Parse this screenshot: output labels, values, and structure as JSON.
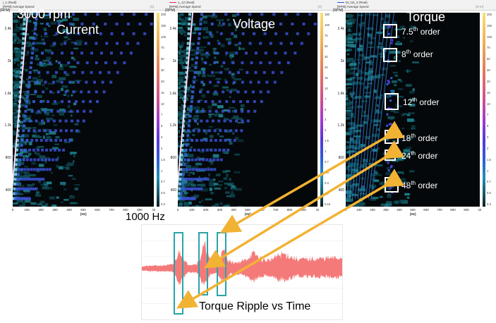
{
  "chart_data": [
    {
      "type": "heatmap",
      "title": "Current",
      "subtitle": "3000 rpm",
      "channel": "i_1 (Real)",
      "xaxis_header": "[RPM] Average Speed",
      "ylabel": "[RPM]",
      "yticks": [
        "2.4k",
        "2k",
        "1.6k",
        "1.2k",
        "800",
        "400"
      ],
      "xlabel": "[Hz]",
      "xticks": [
        "0",
        "100",
        "200",
        "300",
        "400",
        "500",
        "600",
        "700",
        "800",
        "900",
        "1k"
      ],
      "xlim": [
        0,
        1000
      ],
      "ylim": [
        200,
        2600
      ],
      "colorbar_unit": "[A]",
      "colorbar_ticks": [
        "200",
        "150",
        "100",
        "70",
        "50",
        "30",
        "20",
        "15",
        "10",
        "7",
        "5",
        "3",
        "2",
        "1.5",
        "1",
        "0.7",
        "0.5",
        "0.3"
      ],
      "order_lines": [
        2,
        4,
        6,
        8,
        10,
        12,
        14,
        16,
        18,
        20,
        22,
        24
      ]
    },
    {
      "type": "heatmap",
      "title": "Voltage",
      "channel": "u_12 (Real)",
      "xaxis_header": "[RPM] Average Speed",
      "ylabel": "[RPM]",
      "yticks": [
        "2.4k",
        "2k",
        "1.6k",
        "1.2k",
        "800",
        "400"
      ],
      "xlabel": "[Hz]",
      "xticks": [
        "0",
        "100",
        "200",
        "300",
        "400",
        "500",
        "600",
        "700",
        "800",
        "900",
        "1k"
      ],
      "xlim": [
        0,
        1000
      ],
      "ylim": [
        200,
        2600
      ],
      "colorbar_unit": "[V]",
      "colorbar_ticks": [
        "150",
        "100",
        "70",
        "50",
        "30",
        "20",
        "15",
        "10",
        "7",
        "5",
        "3",
        "2",
        "1.5",
        "1",
        "0.7",
        "0.5",
        "0.3",
        "0.2",
        "0.15"
      ],
      "order_lines": [
        2,
        4,
        6,
        8,
        10,
        12,
        14,
        16,
        18,
        20,
        22,
        24
      ]
    },
    {
      "type": "heatmap",
      "title": "Torque",
      "channel": "M_mit_3 (Real)",
      "xaxis_header": "[RPM] Average Speed",
      "ylabel": "[RPM]",
      "yticks": [
        "2.4k",
        "2k",
        "1.6k",
        "1.2k",
        "800",
        "400"
      ],
      "xlabel": "[Hz]",
      "xticks": [
        "0",
        "100",
        "200",
        "300",
        "400",
        "500",
        "600",
        "700",
        "800",
        "900",
        "1k"
      ],
      "xlim": [
        0,
        1000
      ],
      "ylim": [
        200,
        2600
      ],
      "colorbar_unit": "[N m]",
      "colorbar_ticks": [
        "200",
        "150",
        "100",
        "70",
        "50",
        "30",
        "20",
        "15",
        "10",
        "7",
        "5",
        "3",
        "2",
        "1.5",
        "1",
        "0.7",
        "0.5",
        "0.3"
      ],
      "highlighted_orders": [
        {
          "base": "7.5",
          "sup": "th",
          "rest": " order"
        },
        {
          "base": "8",
          "sup": "th",
          "rest": " order"
        },
        {
          "base": "12",
          "sup": "th",
          "rest": " order"
        },
        {
          "base": "18",
          "sup": "th",
          "rest": " order"
        },
        {
          "base": "24",
          "sup": "th",
          "rest": " order"
        },
        {
          "base": "48",
          "sup": "th",
          "rest": " order"
        }
      ]
    },
    {
      "type": "area",
      "title": "Torque Ripple vs Time",
      "annotation": "1000 Hz",
      "color": "#f47a7a",
      "box_color": "#2aa3a8",
      "arrow_color": "#f2b233"
    }
  ]
}
